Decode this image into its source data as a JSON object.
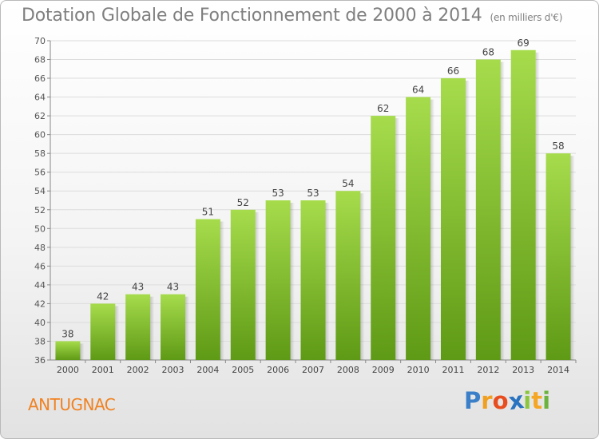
{
  "title": "Dotation Globale de Fonctionnement de 2000 à 2014",
  "subtitle": "(en milliers d'€)",
  "town": "ANTUGNAC",
  "logo": {
    "letters": [
      "P",
      "r",
      "o",
      "x",
      "i",
      "t",
      "i"
    ],
    "colors": [
      "#3a7fc8",
      "#f0a020",
      "#e84d1f",
      "#2a73c0",
      "#8cc63f",
      "#f5a623",
      "#6cb33e"
    ]
  },
  "colors": {
    "bar_top": "#a6dc4c",
    "bar_bottom": "#5f9a16",
    "title": "#7f7f7f",
    "town": "#f08222"
  },
  "chart_data": {
    "type": "bar",
    "title": "Dotation Globale de Fonctionnement de 2000 à 2014",
    "subtitle": "(en milliers d'€)",
    "categories": [
      "2000",
      "2001",
      "2002",
      "2003",
      "2004",
      "2005",
      "2006",
      "2007",
      "2008",
      "2009",
      "2010",
      "2011",
      "2012",
      "2013",
      "2014"
    ],
    "values": [
      38,
      42,
      43,
      43,
      51,
      52,
      53,
      53,
      54,
      62,
      64,
      66,
      68,
      69,
      58
    ],
    "ylim": [
      36,
      70
    ],
    "yticks": [
      36,
      38,
      40,
      42,
      44,
      46,
      48,
      50,
      52,
      54,
      56,
      58,
      60,
      62,
      64,
      66,
      68,
      70
    ],
    "grid": true
  }
}
